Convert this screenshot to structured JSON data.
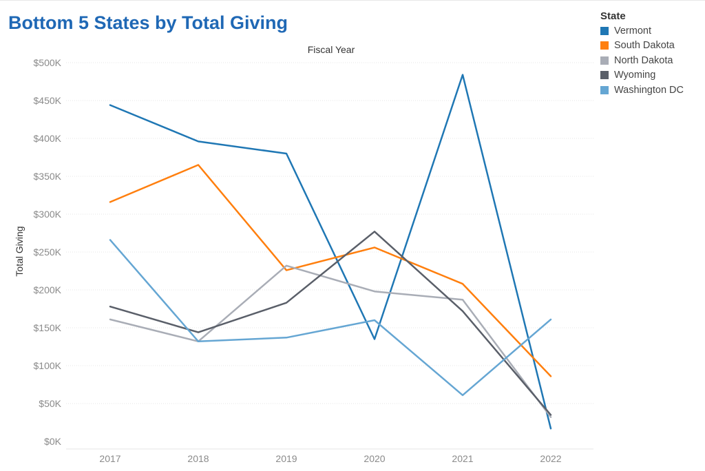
{
  "page": {
    "title": "Bottom 5 States by Total Giving"
  },
  "legend": {
    "title": "State"
  },
  "colors": {
    "Vermont": "#1f77b4",
    "South Dakota": "#ff7f0e",
    "North Dakota": "#a9adb6",
    "Wyoming": "#5a5f69",
    "Washington DC": "#65a6d3"
  },
  "chart_data": {
    "type": "line",
    "title": "Bottom 5 States by Total Giving",
    "xlabel": "Fiscal Year",
    "ylabel": "Total Giving",
    "categories": [
      "2017",
      "2018",
      "2019",
      "2020",
      "2021",
      "2022"
    ],
    "ylim": [
      0,
      500000
    ],
    "yticks": [
      0,
      50000,
      100000,
      150000,
      200000,
      250000,
      300000,
      350000,
      400000,
      450000,
      500000
    ],
    "ytick_labels": [
      "$0K",
      "$50K",
      "$100K",
      "$150K",
      "$200K",
      "$250K",
      "$300K",
      "$350K",
      "$400K",
      "$450K",
      "$500K"
    ],
    "grid": true,
    "legend_position": "top-right",
    "series": [
      {
        "name": "Vermont",
        "values": [
          444000,
          396000,
          380000,
          135000,
          484000,
          17000
        ]
      },
      {
        "name": "South Dakota",
        "values": [
          316000,
          365000,
          226000,
          256000,
          208000,
          86000
        ]
      },
      {
        "name": "North Dakota",
        "values": [
          161000,
          132000,
          232000,
          198000,
          187000,
          32000
        ]
      },
      {
        "name": "Wyoming",
        "values": [
          178000,
          144000,
          183000,
          277000,
          172000,
          35000
        ]
      },
      {
        "name": "Washington DC",
        "values": [
          266000,
          132000,
          137000,
          160000,
          61000,
          161000
        ]
      }
    ]
  }
}
